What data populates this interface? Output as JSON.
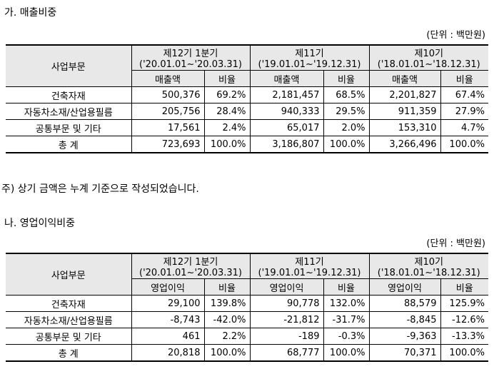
{
  "sales": {
    "heading": "가. 매출비중",
    "unit": "(단위 : 백만원)",
    "header": {
      "segment": "사업부문",
      "periods": [
        {
          "name": "제12기 1분기",
          "range": "('20.01.01~'20.03.31)"
        },
        {
          "name": "제11기",
          "range": "('19.01.01~'19.12.31)"
        },
        {
          "name": "제10기",
          "range": "('18.01.01~'18.12.31)"
        }
      ],
      "amount_label": "매출액",
      "ratio_label": "비율"
    },
    "rows": [
      {
        "segment": "건축자재",
        "values": [
          "500,376",
          "69.2%",
          "2,181,457",
          "68.5%",
          "2,201,827",
          "67.4%"
        ]
      },
      {
        "segment": "자동차소재/산업용필름",
        "values": [
          "205,756",
          "28.4%",
          "940,333",
          "29.5%",
          "911,359",
          "27.9%"
        ]
      },
      {
        "segment": "공통부문 및 기타",
        "values": [
          "17,561",
          "2.4%",
          "65,017",
          "2.0%",
          "153,310",
          "4.7%"
        ]
      },
      {
        "segment": "총 계",
        "values": [
          "723,693",
          "100.0%",
          "3,186,807",
          "100.0%",
          "3,266,496",
          "100.0%"
        ]
      }
    ],
    "note": "주) 상기 금액은 누계 기준으로 작성되었습니다."
  },
  "op_income": {
    "heading": "나. 영업이익비중",
    "unit": "(단위 : 백만원)",
    "header": {
      "segment": "사업부문",
      "periods": [
        {
          "name": "제12기 1분기",
          "range": "('20.01.01~'20.03.31)"
        },
        {
          "name": "제11기",
          "range": "('19.01.01~'19.12.31)"
        },
        {
          "name": "제10기",
          "range": "('18.01.01~'18.12.31)"
        }
      ],
      "amount_label": "영업이익",
      "ratio_label": "비율"
    },
    "rows": [
      {
        "segment": "건축자재",
        "values": [
          "29,100",
          "139.8%",
          "90,778",
          "132.0%",
          "88,579",
          "125.9%"
        ]
      },
      {
        "segment": "자동차소재/산업용필름",
        "values": [
          "-8,743",
          "-42.0%",
          "-21,812",
          "-31.7%",
          "-8,845",
          "-12.6%"
        ]
      },
      {
        "segment": "공통부문 및 기타",
        "values": [
          "461",
          "2.2%",
          "-189",
          "-0.3%",
          "-9,363",
          "-13.3%"
        ]
      },
      {
        "segment": "총 계",
        "values": [
          "20,818",
          "100.0%",
          "68,777",
          "100.0%",
          "70,371",
          "100.0%"
        ]
      }
    ]
  }
}
